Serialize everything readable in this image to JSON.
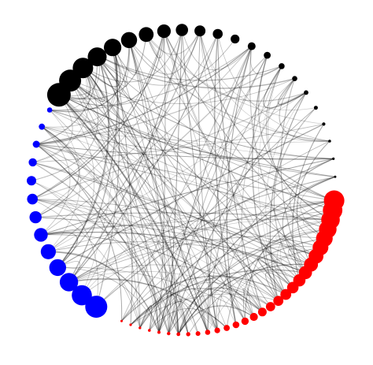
{
  "diagram": {
    "kind": "circular-network",
    "background": "#ffffff",
    "edge_color": "#000000",
    "groups": [
      {
        "name": "",
        "color": "#000000",
        "node_count": 22
      },
      {
        "name": "",
        "color": "#ff0000",
        "node_count": 30
      },
      {
        "name": "",
        "color": "#0000ff",
        "node_count": 18
      }
    ],
    "edge_count": 240
  }
}
